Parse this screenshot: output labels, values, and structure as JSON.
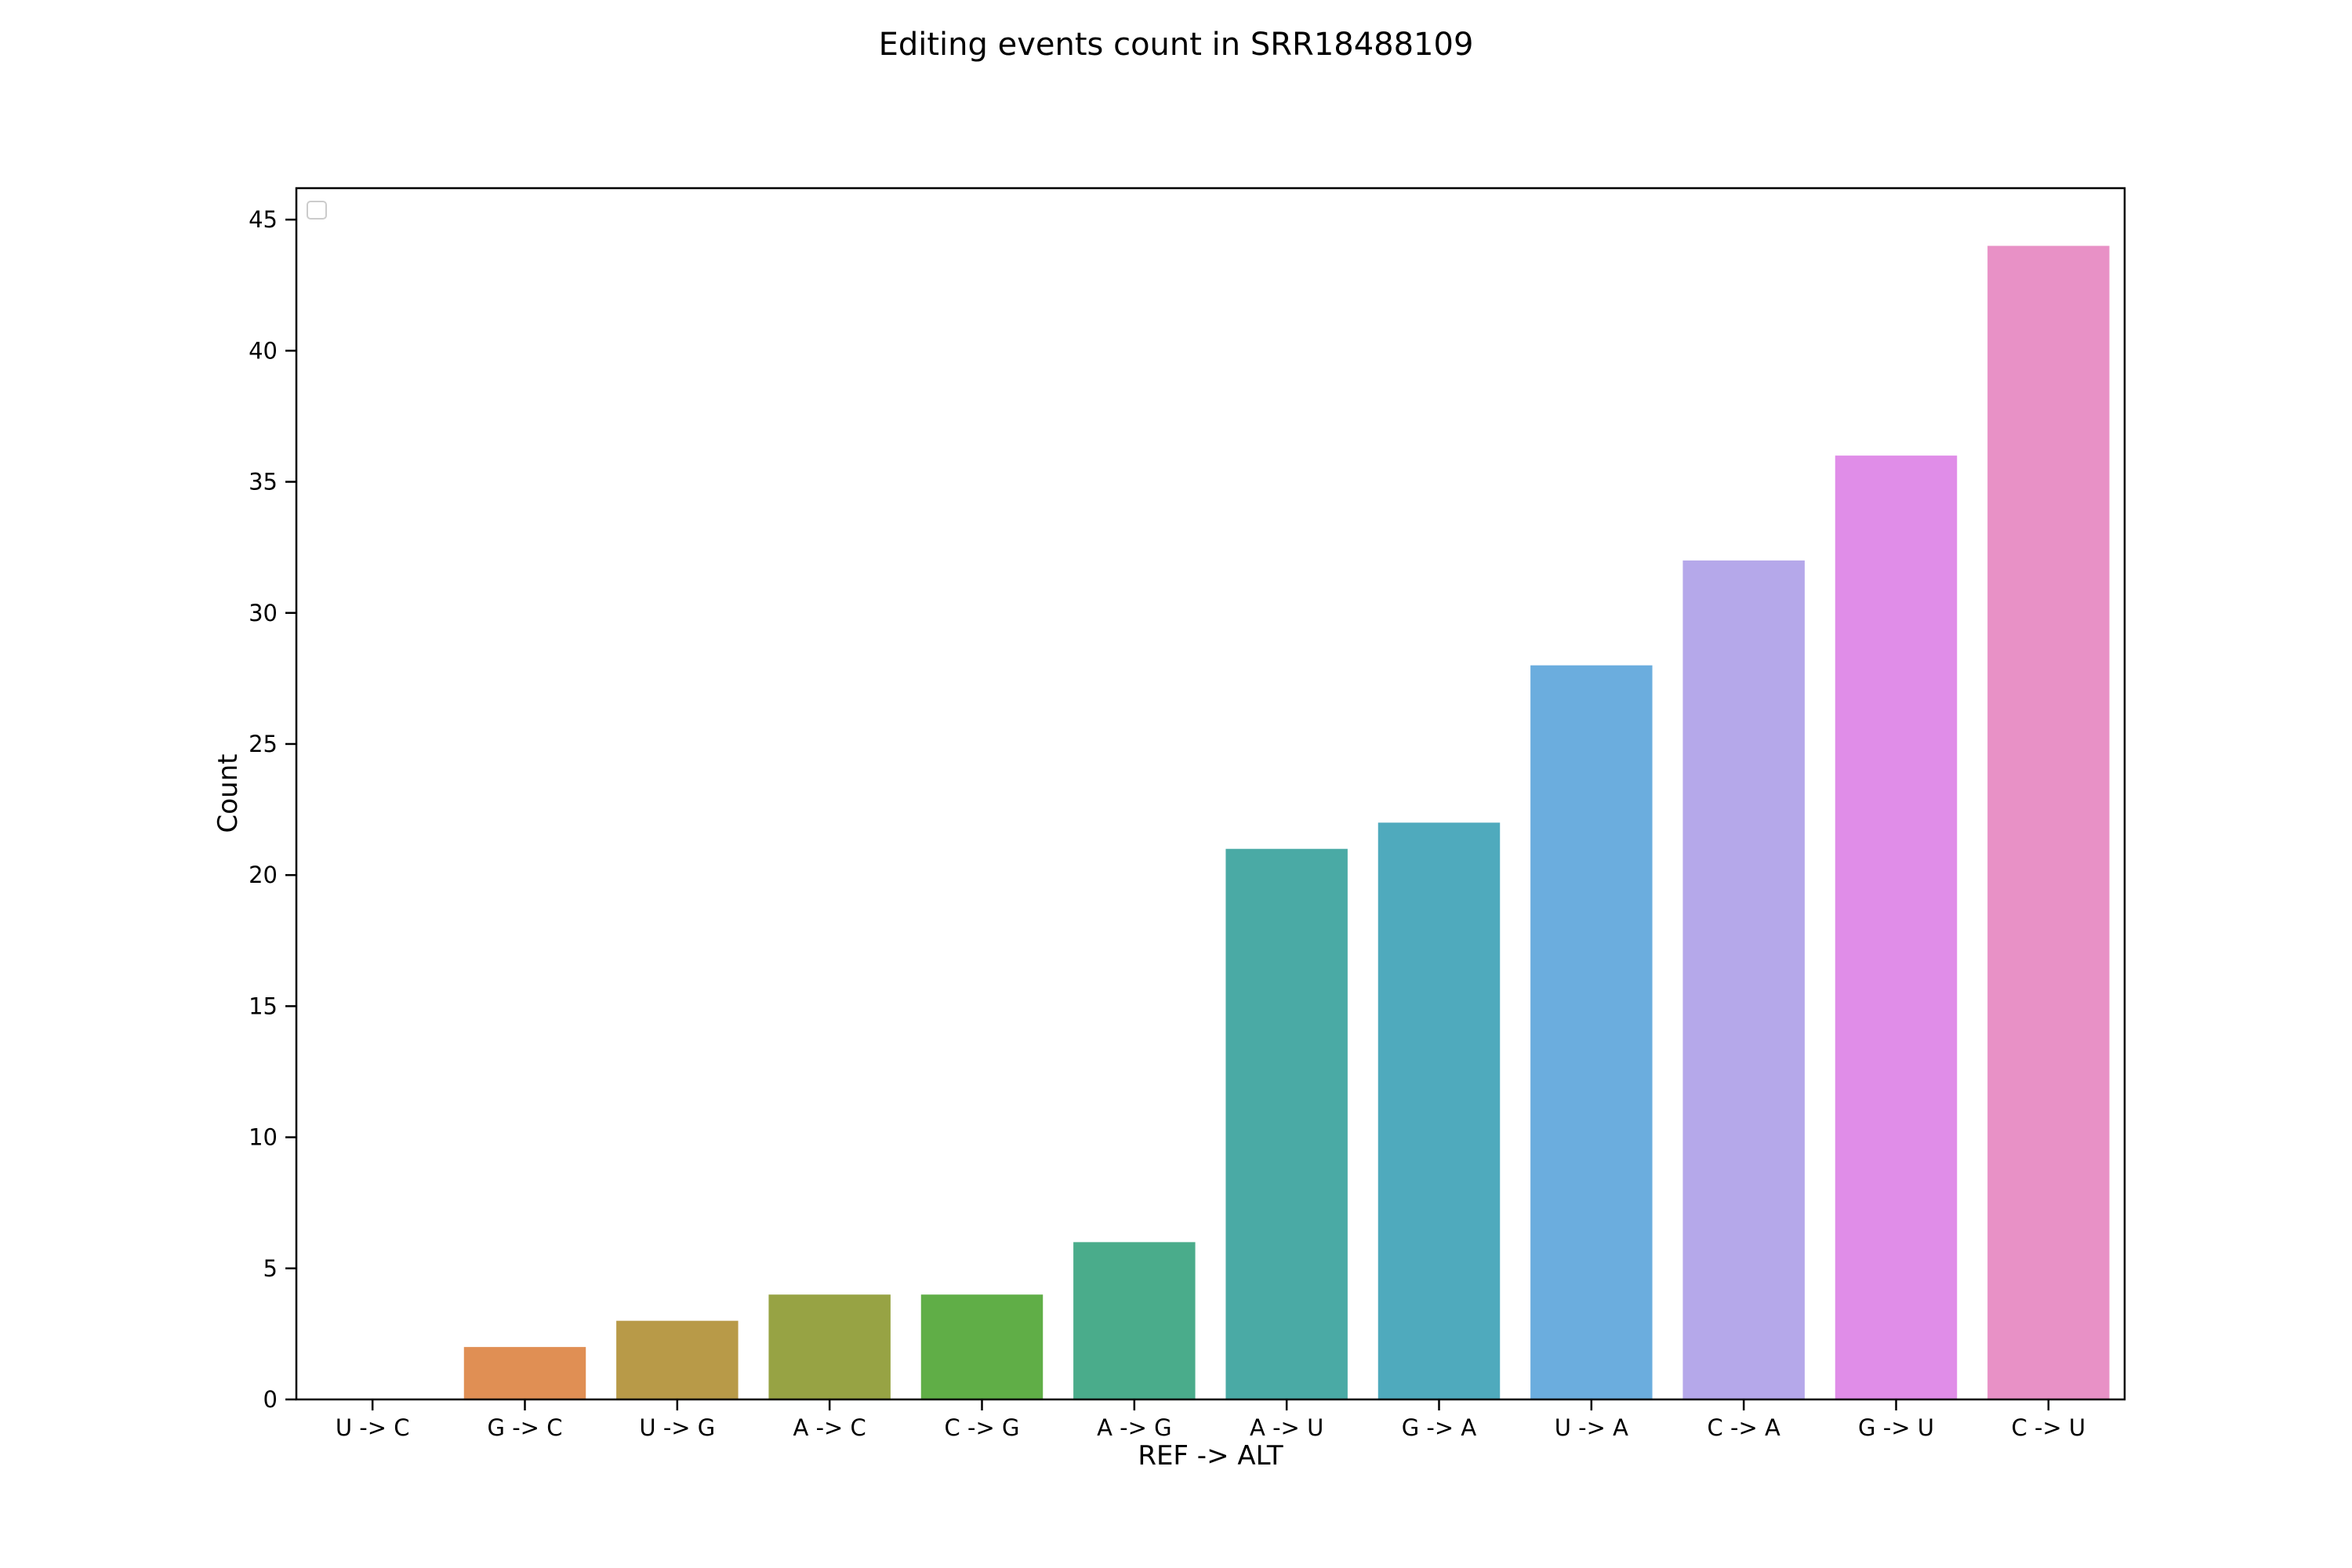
{
  "chart_data": {
    "type": "bar",
    "title": "Editing events count in SRR18488109",
    "xlabel": "REF -> ALT",
    "ylabel": "Count",
    "categories": [
      "U -> C",
      "G -> C",
      "U -> G",
      "A -> C",
      "C -> G",
      "A -> G",
      "A -> U",
      "G -> A",
      "U -> A",
      "C -> A",
      "G -> U",
      "C -> U"
    ],
    "values": [
      0,
      2,
      3,
      4,
      4,
      6,
      21,
      22,
      28,
      32,
      36,
      44
    ],
    "colors": [
      "#f77189",
      "#e08f54",
      "#b89a48",
      "#97a344",
      "#60ae47",
      "#4aac8b",
      "#4aaaa5",
      "#4faabd",
      "#6badde",
      "#b5a8ea",
      "#e08de8",
      "#e891c6"
    ],
    "ylim": [
      0,
      46.2
    ],
    "yticks": [
      0,
      5,
      10,
      15,
      20,
      25,
      30,
      35,
      40,
      45
    ],
    "grid": false,
    "legend": "top-left (empty)"
  }
}
